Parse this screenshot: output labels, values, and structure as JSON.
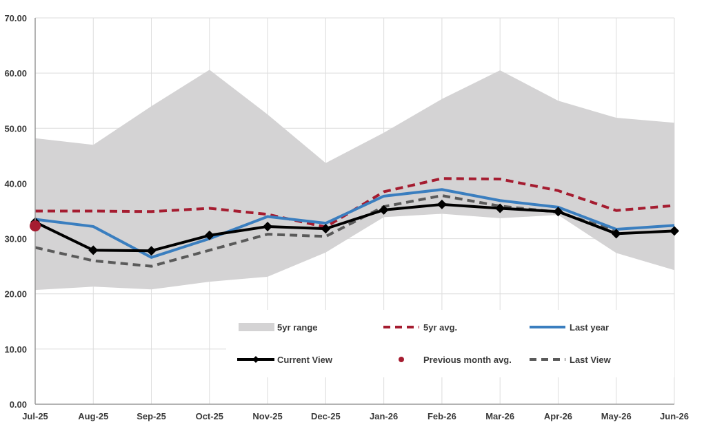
{
  "chart_data": {
    "type": "line",
    "title": "",
    "xlabel": "",
    "ylabel": "",
    "categories": [
      "Jul-25",
      "Aug-25",
      "Sep-25",
      "Oct-25",
      "Nov-25",
      "Dec-25",
      "Jan-26",
      "Feb-26",
      "Mar-26",
      "Apr-26",
      "May-26",
      "Jun-26"
    ],
    "ylim": [
      0,
      70
    ],
    "yticks": [
      "0.00",
      "10.00",
      "20.00",
      "30.00",
      "40.00",
      "50.00",
      "60.00",
      "70.00"
    ],
    "grid": true,
    "range_band": {
      "name": "5yr range",
      "color": "#d4d3d4",
      "upper": [
        48.2,
        47.0,
        54.0,
        60.6,
        52.5,
        43.7,
        49.2,
        55.3,
        60.5,
        55.0,
        51.9,
        51.0
      ],
      "lower": [
        20.7,
        21.3,
        20.8,
        22.2,
        23.1,
        27.5,
        33.9,
        34.5,
        33.7,
        34.3,
        27.4,
        24.3
      ]
    },
    "series": [
      {
        "name": "5yr avg.",
        "color": "#a51c30",
        "style": "dashed",
        "values": [
          35.0,
          35.0,
          34.9,
          35.5,
          34.4,
          32.1,
          38.5,
          40.9,
          40.8,
          38.7,
          35.1,
          36.0
        ]
      },
      {
        "name": "Last year",
        "color": "#3a7ebf",
        "style": "solid",
        "values": [
          33.5,
          32.2,
          26.6,
          30.0,
          34.0,
          32.8,
          37.7,
          38.9,
          36.9,
          35.7,
          31.7,
          32.4
        ]
      },
      {
        "name": "Current View",
        "color": "#000000",
        "style": "solid-diamond",
        "values": [
          33.0,
          27.9,
          27.8,
          30.6,
          32.2,
          31.8,
          35.2,
          36.2,
          35.5,
          34.9,
          30.9,
          31.4
        ]
      },
      {
        "name": "Last View",
        "color": "#5a5a5a",
        "style": "dashed",
        "values": [
          28.4,
          26.0,
          25.0,
          27.9,
          30.8,
          30.4,
          35.8,
          37.8,
          35.9,
          34.8,
          31.4,
          null
        ]
      }
    ],
    "points": [
      {
        "name": "Previous month avg.",
        "color": "#a51c30",
        "x": "Jul-25",
        "y": 32.3
      }
    ],
    "legend": {
      "placement": "bottom-right",
      "entries": [
        {
          "label": "5yr range"
        },
        {
          "label": "5yr avg."
        },
        {
          "label": "Last year"
        },
        {
          "label": "Current View"
        },
        {
          "label": "Previous month avg."
        },
        {
          "label": "Last View"
        }
      ]
    }
  }
}
